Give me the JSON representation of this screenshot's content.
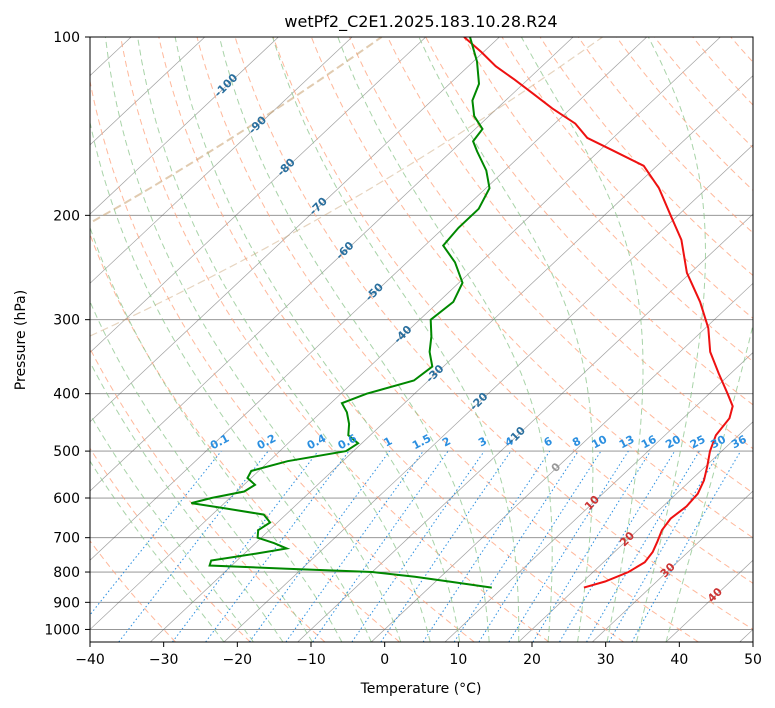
{
  "chart_data": {
    "type": "line",
    "subtype": "skew-t log-p sounding",
    "title": "wetPf2_C2E1.2025.183.10.28.R24",
    "xlabel": "Temperature (°C)",
    "ylabel": "Pressure (hPa)",
    "xlim": [
      -40,
      50
    ],
    "ylim": [
      1050,
      100
    ],
    "yscale": "log",
    "grid": true,
    "x_ticks": [
      "−40",
      "−30",
      "−20",
      "−10",
      "0",
      "10",
      "20",
      "30",
      "40",
      "50"
    ],
    "y_ticks": [
      "100",
      "200",
      "300",
      "400",
      "500",
      "600",
      "700",
      "800",
      "900",
      "1000"
    ],
    "series": [
      {
        "role": "temperature",
        "color": "#ee1111",
        "points": [
          {
            "p": 850,
            "t": 21.0
          },
          {
            "p": 830,
            "t": 23.0
          },
          {
            "p": 800,
            "t": 24.8
          },
          {
            "p": 770,
            "t": 25.6
          },
          {
            "p": 740,
            "t": 25.2
          },
          {
            "p": 710,
            "t": 24.3
          },
          {
            "p": 680,
            "t": 23.3
          },
          {
            "p": 650,
            "t": 22.8
          },
          {
            "p": 620,
            "t": 23.2
          },
          {
            "p": 590,
            "t": 22.9
          },
          {
            "p": 560,
            "t": 21.8
          },
          {
            "p": 530,
            "t": 20.2
          },
          {
            "p": 500,
            "t": 18.4
          },
          {
            "p": 470,
            "t": 16.9
          },
          {
            "p": 440,
            "t": 16.3
          },
          {
            "p": 420,
            "t": 15.0
          },
          {
            "p": 400,
            "t": 12.5
          },
          {
            "p": 370,
            "t": 8.4
          },
          {
            "p": 340,
            "t": 4.1
          },
          {
            "p": 310,
            "t": 0.4
          },
          {
            "p": 280,
            "t": -4.5
          },
          {
            "p": 250,
            "t": -10.5
          },
          {
            "p": 220,
            "t": -16.0
          },
          {
            "p": 200,
            "t": -21.0
          },
          {
            "p": 180,
            "t": -26.5
          },
          {
            "p": 165,
            "t": -31.8
          },
          {
            "p": 155,
            "t": -38.5
          },
          {
            "p": 148,
            "t": -43.5
          },
          {
            "p": 140,
            "t": -47.2
          },
          {
            "p": 132,
            "t": -52.5
          },
          {
            "p": 125,
            "t": -57.0
          },
          {
            "p": 118,
            "t": -61.8
          },
          {
            "p": 112,
            "t": -66.3
          },
          {
            "p": 106,
            "t": -70.3
          },
          {
            "p": 100,
            "t": -74.8
          }
        ]
      },
      {
        "role": "dewpoint",
        "color": "#008800",
        "points": [
          {
            "p": 850,
            "t": 8.5
          },
          {
            "p": 830,
            "t": 1.8
          },
          {
            "p": 815,
            "t": -3.5
          },
          {
            "p": 800,
            "t": -10.0
          },
          {
            "p": 790,
            "t": -22.0
          },
          {
            "p": 780,
            "t": -33.0
          },
          {
            "p": 765,
            "t": -33.5
          },
          {
            "p": 745,
            "t": -28.5
          },
          {
            "p": 730,
            "t": -25.0
          },
          {
            "p": 715,
            "t": -27.5
          },
          {
            "p": 700,
            "t": -30.5
          },
          {
            "p": 680,
            "t": -31.5
          },
          {
            "p": 660,
            "t": -31.0
          },
          {
            "p": 640,
            "t": -33.0
          },
          {
            "p": 625,
            "t": -39.0
          },
          {
            "p": 612,
            "t": -44.5
          },
          {
            "p": 600,
            "t": -42.5
          },
          {
            "p": 585,
            "t": -39.0
          },
          {
            "p": 570,
            "t": -38.5
          },
          {
            "p": 555,
            "t": -40.5
          },
          {
            "p": 540,
            "t": -41.0
          },
          {
            "p": 520,
            "t": -37.5
          },
          {
            "p": 500,
            "t": -31.0
          },
          {
            "p": 485,
            "t": -30.5
          },
          {
            "p": 470,
            "t": -33.0
          },
          {
            "p": 450,
            "t": -34.5
          },
          {
            "p": 430,
            "t": -36.5
          },
          {
            "p": 415,
            "t": -38.5
          },
          {
            "p": 400,
            "t": -36.5
          },
          {
            "p": 380,
            "t": -32.0
          },
          {
            "p": 360,
            "t": -31.5
          },
          {
            "p": 340,
            "t": -34.0
          },
          {
            "p": 320,
            "t": -36.0
          },
          {
            "p": 300,
            "t": -38.5
          },
          {
            "p": 280,
            "t": -38.0
          },
          {
            "p": 260,
            "t": -39.5
          },
          {
            "p": 240,
            "t": -43.5
          },
          {
            "p": 225,
            "t": -47.5
          },
          {
            "p": 210,
            "t": -48.0
          },
          {
            "p": 195,
            "t": -48.0
          },
          {
            "p": 180,
            "t": -49.5
          },
          {
            "p": 168,
            "t": -52.5
          },
          {
            "p": 156,
            "t": -56.5
          },
          {
            "p": 150,
            "t": -58.5
          },
          {
            "p": 143,
            "t": -59.0
          },
          {
            "p": 136,
            "t": -62.0
          },
          {
            "p": 128,
            "t": -64.5
          },
          {
            "p": 120,
            "t": -66.0
          },
          {
            "p": 110,
            "t": -69.5
          },
          {
            "p": 100,
            "t": -74.0
          }
        ]
      }
    ],
    "isotherm_labels": [
      "-100",
      "-90",
      "-80",
      "-70",
      "-60",
      "-50",
      "-40",
      "-30",
      "-20",
      "-10",
      "0",
      "10",
      "20",
      "30",
      "40"
    ],
    "mixing_ratio_labels": [
      "0.1",
      "0.2",
      "0.4",
      "0.6",
      "1",
      "1.5",
      "2",
      "3",
      "4",
      "6",
      "8",
      "10",
      "13",
      "16",
      "20",
      "25",
      "30",
      "36"
    ],
    "mixing_ratio_values": [
      0.1,
      0.2,
      0.4,
      0.6,
      1,
      1.5,
      2,
      3,
      4,
      6,
      8,
      10,
      13,
      16,
      20,
      25,
      30,
      36
    ],
    "colors": {
      "isotherm_cold": "#2a6f9e",
      "isotherm_zero": "#999999",
      "isotherm_warm": "#cc3333",
      "mixing_ratio": "#2b8fe0",
      "dry_adiabat": "#ffa07a",
      "moist_adiabat": "#8bc48b",
      "skewed_isotherm": "#555555",
      "isobar": "#888888",
      "ozone_arc": "#c8a070"
    }
  }
}
